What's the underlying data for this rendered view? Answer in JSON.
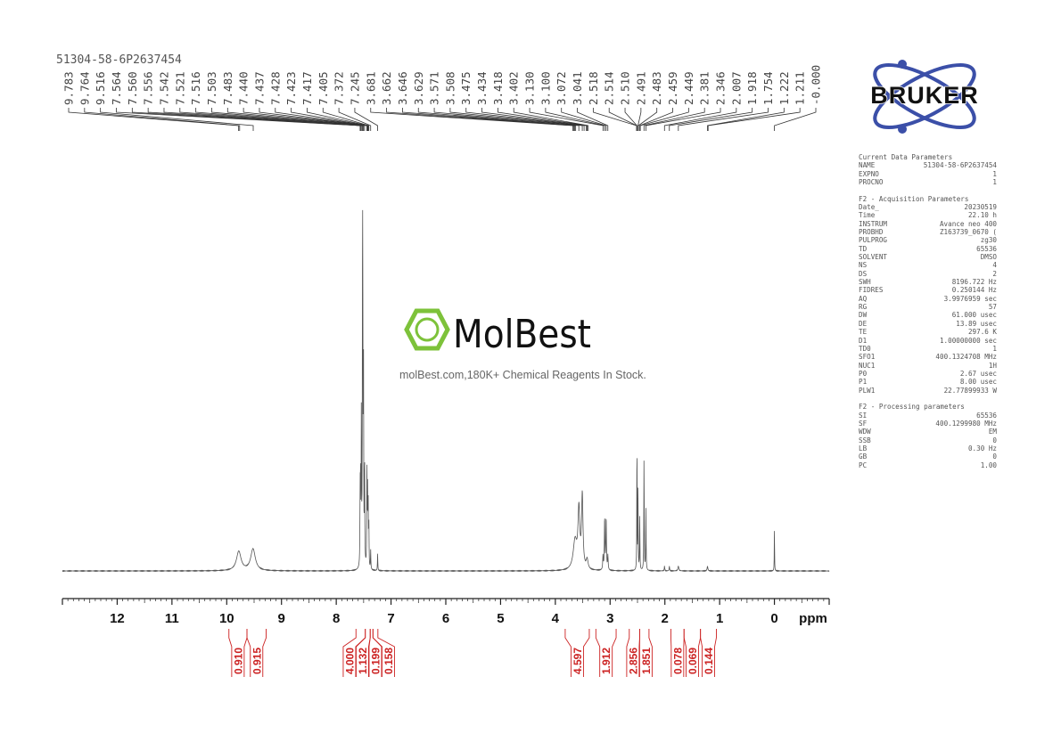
{
  "sample_name": "51304-58-6P2637454",
  "watermark": {
    "brand": "MolBest",
    "tagline": "molBest.com,180K+ Chemical Reagents In Stock.",
    "color": "#7dc23a"
  },
  "logo": {
    "text": "BRUKER",
    "orbit_color": "#3b4fa8"
  },
  "parameters": [
    {
      "title": "Current Data Parameters",
      "rows": [
        [
          "NAME",
          "51304-58-6P2637454"
        ],
        [
          "EXPNO",
          "1"
        ],
        [
          "PROCNO",
          "1"
        ]
      ]
    },
    {
      "title": "F2 - Acquisition Parameters",
      "rows": [
        [
          "Date_",
          "20230519"
        ],
        [
          "Time",
          "22.10 h"
        ],
        [
          "INSTRUM",
          "Avance neo 400"
        ],
        [
          "PROBHD",
          "Z163739_0670 ("
        ],
        [
          "PULPROG",
          "zg30"
        ],
        [
          "TD",
          "65536"
        ],
        [
          "SOLVENT",
          "DMSO"
        ],
        [
          "NS",
          "4"
        ],
        [
          "DS",
          "2"
        ],
        [
          "SWH",
          "8196.722 Hz"
        ],
        [
          "FIDRES",
          "0.250144 Hz"
        ],
        [
          "AQ",
          "3.9976959 sec"
        ],
        [
          "RG",
          "57"
        ],
        [
          "DW",
          "61.000 usec"
        ],
        [
          "DE",
          "13.89 usec"
        ],
        [
          "TE",
          "297.6 K"
        ],
        [
          "D1",
          "1.00000000 sec"
        ],
        [
          "TD0",
          "1"
        ],
        [
          "SFO1",
          "400.1324708 MHz"
        ],
        [
          "NUC1",
          "1H"
        ],
        [
          "P0",
          "2.67 usec"
        ],
        [
          "P1",
          "8.00 usec"
        ],
        [
          "PLW1",
          "22.77899933 W"
        ]
      ]
    },
    {
      "title": "F2 - Processing parameters",
      "rows": [
        [
          "SI",
          "65536"
        ],
        [
          "SF",
          "400.1299980 MHz"
        ],
        [
          "WDW",
          "EM"
        ],
        [
          "SSB",
          "0"
        ],
        [
          "LB",
          "0.30 Hz"
        ],
        [
          "GB",
          "0"
        ],
        [
          "PC",
          "1.00"
        ]
      ]
    }
  ],
  "chart_data": {
    "type": "line",
    "xlabel": "ppm",
    "xlim": [
      13,
      -1
    ],
    "x_reversed": true,
    "x_ticks": [
      12,
      11,
      10,
      9,
      8,
      7,
      6,
      5,
      4,
      3,
      2,
      1,
      0
    ],
    "line_color": "#555555",
    "integral_color": "#cc2222",
    "peak_labels": [
      "9.783",
      "9.764",
      "9.516",
      "7.564",
      "7.560",
      "7.556",
      "7.542",
      "7.521",
      "7.516",
      "7.503",
      "7.483",
      "7.440",
      "7.437",
      "7.428",
      "7.423",
      "7.417",
      "7.405",
      "7.372",
      "7.245",
      "3.681",
      "3.662",
      "3.646",
      "3.629",
      "3.571",
      "3.508",
      "3.475",
      "3.434",
      "3.418",
      "3.402",
      "3.130",
      "3.100",
      "3.072",
      "3.041",
      "2.518",
      "2.514",
      "2.510",
      "2.491",
      "2.483",
      "2.459",
      "2.449",
      "2.381",
      "2.346",
      "2.007",
      "1.918",
      "1.754",
      "1.222",
      "1.211",
      "-0.000"
    ],
    "peaks": [
      {
        "ppm": 9.78,
        "intensity": 8,
        "width": 0.05
      },
      {
        "ppm": 9.52,
        "intensity": 9,
        "width": 0.05
      },
      {
        "ppm": 7.564,
        "intensity": 30,
        "width": 0.004
      },
      {
        "ppm": 7.556,
        "intensity": 35,
        "width": 0.004
      },
      {
        "ppm": 7.542,
        "intensity": 60,
        "width": 0.004
      },
      {
        "ppm": 7.521,
        "intensity": 95,
        "width": 0.004
      },
      {
        "ppm": 7.516,
        "intensity": 100,
        "width": 0.004
      },
      {
        "ppm": 7.503,
        "intensity": 85,
        "width": 0.004
      },
      {
        "ppm": 7.483,
        "intensity": 45,
        "width": 0.004
      },
      {
        "ppm": 7.44,
        "intensity": 40,
        "width": 0.004
      },
      {
        "ppm": 7.428,
        "intensity": 30,
        "width": 0.004
      },
      {
        "ppm": 7.417,
        "intensity": 25,
        "width": 0.004
      },
      {
        "ppm": 7.405,
        "intensity": 18,
        "width": 0.004
      },
      {
        "ppm": 7.372,
        "intensity": 8,
        "width": 0.004
      },
      {
        "ppm": 7.245,
        "intensity": 7,
        "width": 0.004
      },
      {
        "ppm": 3.64,
        "intensity": 12,
        "width": 0.04
      },
      {
        "ppm": 3.57,
        "intensity": 24,
        "width": 0.02
      },
      {
        "ppm": 3.508,
        "intensity": 30,
        "width": 0.015
      },
      {
        "ppm": 3.42,
        "intensity": 4,
        "width": 0.02
      },
      {
        "ppm": 3.1,
        "intensity": 22,
        "width": 0.006
      },
      {
        "ppm": 3.072,
        "intensity": 22,
        "width": 0.006
      },
      {
        "ppm": 3.13,
        "intensity": 6,
        "width": 0.006
      },
      {
        "ppm": 3.041,
        "intensity": 6,
        "width": 0.006
      },
      {
        "ppm": 2.51,
        "intensity": 62,
        "width": 0.003
      },
      {
        "ppm": 2.491,
        "intensity": 34,
        "width": 0.004
      },
      {
        "ppm": 2.459,
        "intensity": 22,
        "width": 0.004
      },
      {
        "ppm": 2.381,
        "intensity": 48,
        "width": 0.004
      },
      {
        "ppm": 2.346,
        "intensity": 26,
        "width": 0.004
      },
      {
        "ppm": 2.007,
        "intensity": 2,
        "width": 0.005
      },
      {
        "ppm": 1.918,
        "intensity": 2,
        "width": 0.005
      },
      {
        "ppm": 1.754,
        "intensity": 2,
        "width": 0.01
      },
      {
        "ppm": 1.222,
        "intensity": 2,
        "width": 0.008
      },
      {
        "ppm": 0.0,
        "intensity": 19,
        "width": 0.003
      }
    ],
    "integrals": [
      {
        "from": 9.96,
        "to": 9.63,
        "value": "0.910"
      },
      {
        "from": 9.63,
        "to": 9.28,
        "value": "0.915"
      },
      {
        "from": 7.64,
        "to": 7.47,
        "value": "4.000"
      },
      {
        "from": 7.47,
        "to": 7.38,
        "value": "1.132"
      },
      {
        "from": 7.38,
        "to": 7.33,
        "value": "0.199"
      },
      {
        "from": 7.33,
        "to": 7.24,
        "value": "0.158"
      },
      {
        "from": 3.82,
        "to": 3.38,
        "value": "4.597"
      },
      {
        "from": 3.26,
        "to": 2.89,
        "value": "1.912"
      },
      {
        "from": 2.65,
        "to": 2.46,
        "value": "2.856"
      },
      {
        "from": 2.46,
        "to": 2.29,
        "value": "1.851"
      },
      {
        "from": 1.89,
        "to": 1.65,
        "value": "0.078"
      },
      {
        "from": 1.65,
        "to": 1.35,
        "value": "0.069"
      },
      {
        "from": 1.35,
        "to": 1.06,
        "value": "0.144"
      }
    ]
  }
}
